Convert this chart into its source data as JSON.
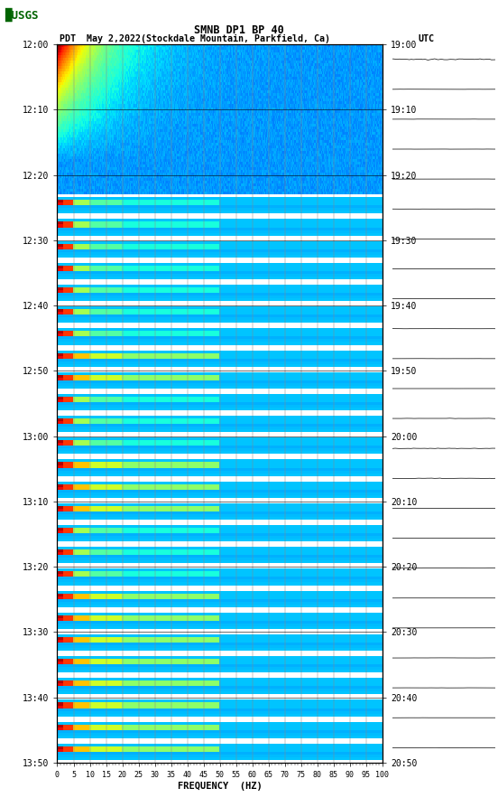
{
  "title_line1": "SMNB DP1 BP 40",
  "title_line2_left": "PDT  May 2,2022(Stockdale Mountain, Parkfield, Ca)",
  "title_line2_right": "UTC",
  "xlabel": "FREQUENCY  (HZ)",
  "freq_ticks": [
    0,
    5,
    10,
    15,
    20,
    25,
    30,
    35,
    40,
    45,
    50,
    55,
    60,
    65,
    70,
    75,
    80,
    85,
    90,
    95,
    100
  ],
  "left_time_labels": [
    "12:00",
    "12:10",
    "12:20",
    "12:30",
    "12:40",
    "12:50",
    "13:00",
    "13:10",
    "13:20",
    "13:30",
    "13:40",
    "13:50"
  ],
  "right_time_labels": [
    "19:00",
    "19:10",
    "19:20",
    "19:30",
    "19:40",
    "19:50",
    "20:00",
    "20:10",
    "20:20",
    "20:30",
    "20:40",
    "20:50"
  ],
  "fig_width": 5.52,
  "fig_height": 8.93,
  "bg_color": "#ffffff",
  "grid_color": "#808080"
}
